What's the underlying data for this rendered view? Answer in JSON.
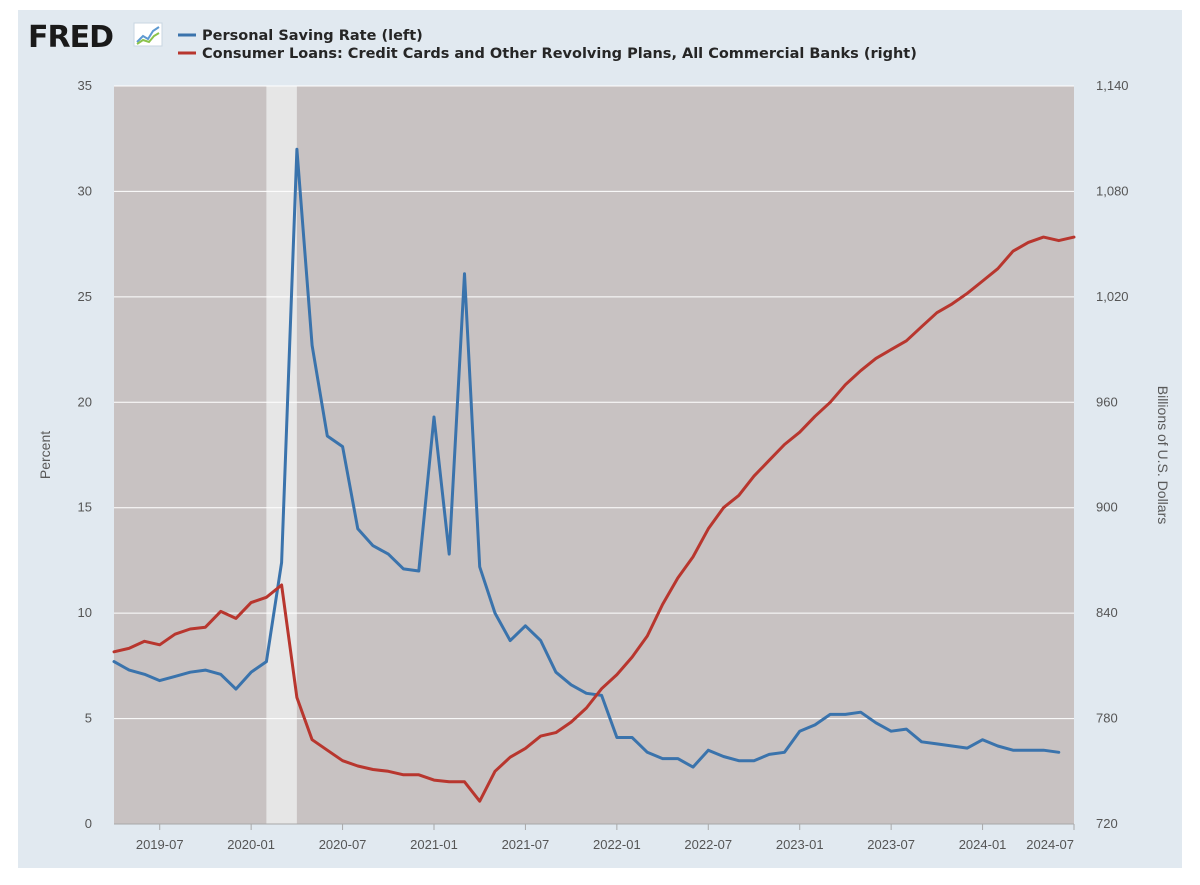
{
  "logo": {
    "text": "FRED",
    "icon": "trend-chart-icon"
  },
  "colors": {
    "frame": "#e1e9f0",
    "plot_bg": "#c8c2c2",
    "grid": "#ffffff",
    "recession": "#e6e6e6",
    "saving": "#3a73ac",
    "loans": "#b8362e"
  },
  "chart_data": {
    "type": "line",
    "x_type": "date",
    "xlim": [
      "2019-04",
      "2024-07"
    ],
    "ylim_left": [
      0,
      35
    ],
    "ylim_right": [
      720,
      1140
    ],
    "ylabel_left": "Percent",
    "ylabel_right": "Billions of U.S. Dollars",
    "legend_position": "top-left",
    "grid": "horizontal",
    "x_ticks": [
      "2019-07",
      "2020-01",
      "2020-07",
      "2021-01",
      "2021-07",
      "2022-01",
      "2022-07",
      "2023-01",
      "2023-07",
      "2024-01",
      "2024-07"
    ],
    "y_ticks_left": [
      0,
      5,
      10,
      15,
      20,
      25,
      30,
      35
    ],
    "y_ticks_right": [
      "720",
      "780",
      "840",
      "900",
      "960",
      "1,020",
      "1,080",
      "1,140"
    ],
    "recession": [
      "2020-02",
      "2020-04"
    ],
    "series": [
      {
        "name": "Personal Saving Rate (left)",
        "axis": "left",
        "color": "#3a73ac",
        "x": [
          "2019-04",
          "2019-05",
          "2019-06",
          "2019-07",
          "2019-08",
          "2019-09",
          "2019-10",
          "2019-11",
          "2019-12",
          "2020-01",
          "2020-02",
          "2020-03",
          "2020-04",
          "2020-05",
          "2020-06",
          "2020-07",
          "2020-08",
          "2020-09",
          "2020-10",
          "2020-11",
          "2020-12",
          "2021-01",
          "2021-02",
          "2021-03",
          "2021-04",
          "2021-05",
          "2021-06",
          "2021-07",
          "2021-08",
          "2021-09",
          "2021-10",
          "2021-11",
          "2021-12",
          "2022-01",
          "2022-02",
          "2022-03",
          "2022-04",
          "2022-05",
          "2022-06",
          "2022-07",
          "2022-08",
          "2022-09",
          "2022-10",
          "2022-11",
          "2022-12",
          "2023-01",
          "2023-02",
          "2023-03",
          "2023-04",
          "2023-05",
          "2023-06",
          "2023-07",
          "2023-08",
          "2023-09",
          "2023-10",
          "2023-11",
          "2023-12",
          "2024-01",
          "2024-02",
          "2024-03",
          "2024-04",
          "2024-05",
          "2024-06"
        ],
        "values": [
          7.7,
          7.3,
          7.1,
          6.8,
          7.0,
          7.2,
          7.3,
          7.1,
          6.4,
          7.2,
          7.7,
          12.4,
          32.0,
          22.7,
          18.4,
          17.9,
          14.0,
          13.2,
          12.8,
          12.1,
          12.0,
          19.3,
          12.8,
          26.1,
          12.2,
          10.0,
          8.7,
          9.4,
          8.7,
          7.2,
          6.6,
          6.2,
          6.1,
          4.1,
          4.1,
          3.4,
          3.1,
          3.1,
          2.7,
          3.5,
          3.2,
          3.0,
          3.0,
          3.3,
          3.4,
          4.4,
          4.7,
          5.2,
          5.2,
          5.3,
          4.8,
          4.4,
          4.5,
          3.9,
          3.8,
          3.7,
          3.6,
          4.0,
          3.7,
          3.5,
          3.5,
          3.5,
          3.4
        ]
      },
      {
        "name": "Consumer Loans: Credit Cards and Other Revolving Plans, All Commercial Banks (right)",
        "axis": "right",
        "color": "#b8362e",
        "x": [
          "2019-04",
          "2019-05",
          "2019-06",
          "2019-07",
          "2019-08",
          "2019-09",
          "2019-10",
          "2019-11",
          "2019-12",
          "2020-01",
          "2020-02",
          "2020-03",
          "2020-04",
          "2020-05",
          "2020-06",
          "2020-07",
          "2020-08",
          "2020-09",
          "2020-10",
          "2020-11",
          "2020-12",
          "2021-01",
          "2021-02",
          "2021-03",
          "2021-04",
          "2021-05",
          "2021-06",
          "2021-07",
          "2021-08",
          "2021-09",
          "2021-10",
          "2021-11",
          "2021-12",
          "2022-01",
          "2022-02",
          "2022-03",
          "2022-04",
          "2022-05",
          "2022-06",
          "2022-07",
          "2022-08",
          "2022-09",
          "2022-10",
          "2022-11",
          "2022-12",
          "2023-01",
          "2023-02",
          "2023-03",
          "2023-04",
          "2023-05",
          "2023-06",
          "2023-07",
          "2023-08",
          "2023-09",
          "2023-10",
          "2023-11",
          "2023-12",
          "2024-01",
          "2024-02",
          "2024-03",
          "2024-04",
          "2024-05",
          "2024-06",
          "2024-07"
        ],
        "values": [
          818,
          820,
          824,
          822,
          828,
          831,
          832,
          841,
          837,
          846,
          849,
          856,
          792,
          768,
          762,
          756,
          753,
          751,
          750,
          748,
          748,
          745,
          744,
          744,
          733,
          750,
          758,
          763,
          770,
          772,
          778,
          786,
          797,
          805,
          815,
          827,
          845,
          860,
          872,
          888,
          900,
          907,
          918,
          927,
          936,
          943,
          952,
          960,
          970,
          978,
          985,
          990,
          995,
          1003,
          1011,
          1016,
          1022,
          1029,
          1036,
          1046,
          1051,
          1054,
          1052,
          1054
        ]
      }
    ]
  }
}
